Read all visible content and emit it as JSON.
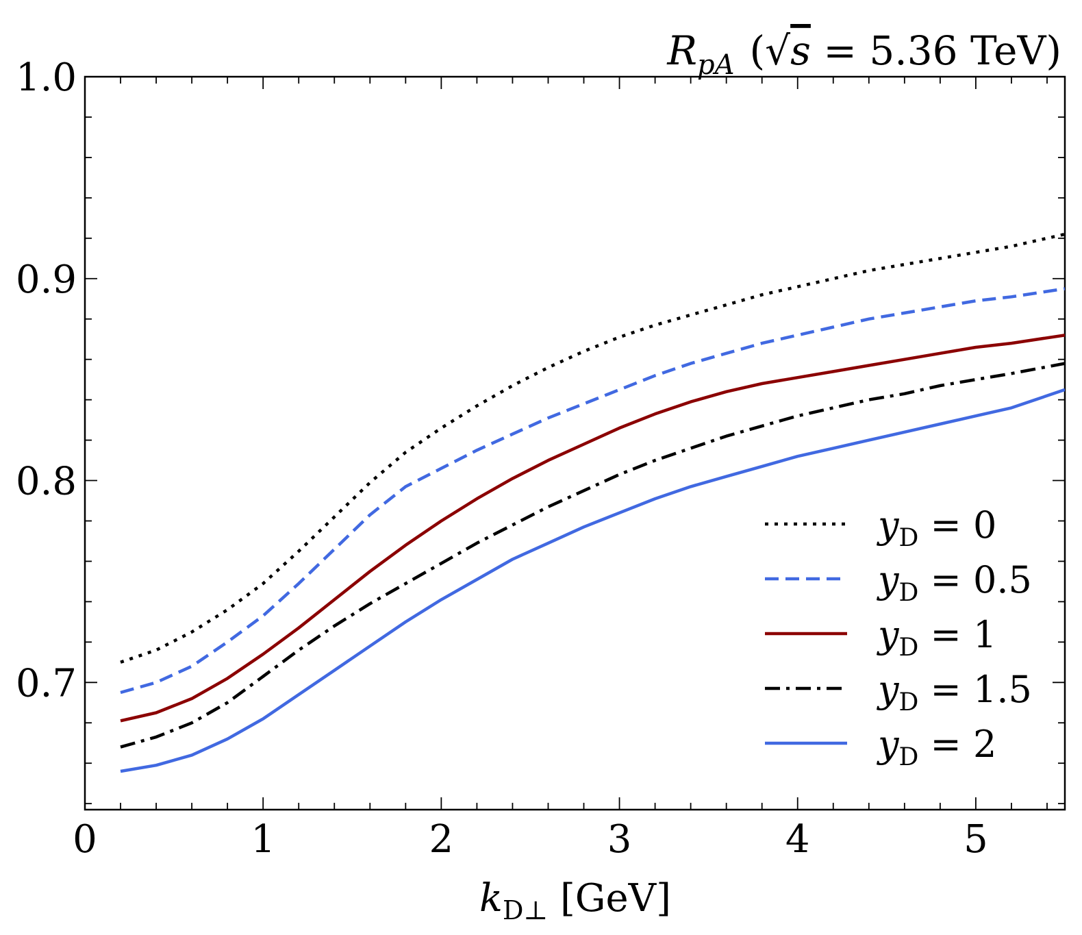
{
  "chart_data": {
    "type": "line",
    "title": {
      "symbol": "R",
      "subscript": "pA",
      "open_paren": "(",
      "sqrt_symbol": "√",
      "energy_var": "s",
      "equals": " = ",
      "value": "5.36 TeV",
      "close_paren": ")"
    },
    "xlabel": {
      "var": "k",
      "sub": "D⊥",
      "unit": " [GeV]"
    },
    "ylabel": "",
    "xlim": [
      0,
      5.5
    ],
    "ylim": [
      0.637,
      1.0
    ],
    "x_ticks": [
      {
        "value": 0,
        "label": "0"
      },
      {
        "value": 1,
        "label": "1"
      },
      {
        "value": 2,
        "label": "2"
      },
      {
        "value": 3,
        "label": "3"
      },
      {
        "value": 4,
        "label": "4"
      },
      {
        "value": 5,
        "label": "5"
      }
    ],
    "y_ticks": [
      {
        "value": 0.7,
        "label": "0.7"
      },
      {
        "value": 0.8,
        "label": "0.8"
      },
      {
        "value": 0.9,
        "label": "0.9"
      },
      {
        "value": 1.0,
        "label": "1.0"
      }
    ],
    "x_minor_step": 0.2,
    "y_minor_step": 0.02,
    "grid": false,
    "legend_position": "bottom-right",
    "x": [
      0.2,
      0.4,
      0.6,
      0.8,
      1.0,
      1.2,
      1.4,
      1.6,
      1.8,
      2.0,
      2.2,
      2.4,
      2.6,
      2.8,
      3.0,
      3.2,
      3.4,
      3.6,
      3.8,
      4.0,
      4.2,
      4.4,
      4.6,
      4.8,
      5.0,
      5.2,
      5.5
    ],
    "series": [
      {
        "name": "y_D = 0",
        "legend_var": "y",
        "legend_sub": "D",
        "legend_eq": " = ",
        "legend_val": "0",
        "color": "#000000",
        "style": "dotted",
        "values": [
          0.71,
          0.716,
          0.725,
          0.736,
          0.749,
          0.765,
          0.782,
          0.799,
          0.814,
          0.826,
          0.837,
          0.847,
          0.856,
          0.864,
          0.871,
          0.877,
          0.882,
          0.887,
          0.892,
          0.896,
          0.9,
          0.904,
          0.907,
          0.91,
          0.913,
          0.916,
          0.922
        ]
      },
      {
        "name": "y_D = 0.5",
        "legend_var": "y",
        "legend_sub": "D",
        "legend_eq": " = ",
        "legend_val": "0.5",
        "color": "#4169e1",
        "style": "dashed",
        "values": [
          0.695,
          0.7,
          0.708,
          0.72,
          0.733,
          0.749,
          0.766,
          0.783,
          0.797,
          0.806,
          0.815,
          0.823,
          0.831,
          0.838,
          0.845,
          0.852,
          0.858,
          0.863,
          0.868,
          0.872,
          0.876,
          0.88,
          0.883,
          0.886,
          0.889,
          0.891,
          0.895
        ]
      },
      {
        "name": "y_D = 1",
        "legend_var": "y",
        "legend_sub": "D",
        "legend_eq": " = ",
        "legend_val": "1",
        "color": "#8b0000",
        "style": "solid",
        "values": [
          0.681,
          0.685,
          0.692,
          0.702,
          0.714,
          0.727,
          0.741,
          0.755,
          0.768,
          0.78,
          0.791,
          0.801,
          0.81,
          0.818,
          0.826,
          0.833,
          0.839,
          0.844,
          0.848,
          0.851,
          0.854,
          0.857,
          0.86,
          0.863,
          0.866,
          0.868,
          0.872
        ]
      },
      {
        "name": "y_D = 1.5",
        "legend_var": "y",
        "legend_sub": "D",
        "legend_eq": " = ",
        "legend_val": "1.5",
        "color": "#000000",
        "style": "dashdot",
        "values": [
          0.668,
          0.673,
          0.68,
          0.69,
          0.703,
          0.716,
          0.728,
          0.739,
          0.749,
          0.759,
          0.769,
          0.778,
          0.787,
          0.795,
          0.803,
          0.81,
          0.816,
          0.822,
          0.827,
          0.832,
          0.836,
          0.84,
          0.843,
          0.847,
          0.85,
          0.853,
          0.858
        ]
      },
      {
        "name": "y_D = 2",
        "legend_var": "y",
        "legend_sub": "D",
        "legend_eq": " = ",
        "legend_val": "2",
        "color": "#4169e1",
        "style": "solid",
        "values": [
          0.656,
          0.659,
          0.664,
          0.672,
          0.682,
          0.694,
          0.706,
          0.718,
          0.73,
          0.741,
          0.751,
          0.761,
          0.769,
          0.777,
          0.784,
          0.791,
          0.797,
          0.802,
          0.807,
          0.812,
          0.816,
          0.82,
          0.824,
          0.828,
          0.832,
          0.836,
          0.845
        ]
      }
    ]
  }
}
